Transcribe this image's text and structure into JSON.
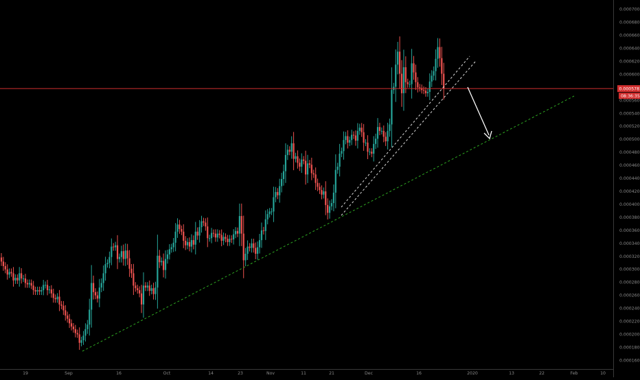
{
  "chart_data": {
    "type": "candlestick",
    "x_ticks": [
      "19",
      "Sep",
      "16",
      "Oct",
      "14",
      "23",
      "Nov",
      "11",
      "21",
      "Dec",
      "16",
      "2020",
      "13",
      "22",
      "Feb",
      "10"
    ],
    "y_ticks": [
      "0.0007000",
      "0.0006800",
      "0.0006600",
      "0.0006400",
      "0.0006200",
      "0.0006000",
      "0.0005800",
      "0.0005600",
      "0.0005400",
      "0.0005200",
      "0.0005000",
      "0.0004800",
      "0.0004600",
      "0.0004400",
      "0.0004200",
      "0.0004000",
      "0.0003800",
      "0.0003600",
      "0.0003400",
      "0.0003200",
      "0.0003000",
      "0.0002800",
      "0.0002600",
      "0.0002400",
      "0.0002200",
      "0.0002000",
      "0.0001800",
      "0.0001600"
    ],
    "ylim": [
      0.000153,
      0.0007081
    ],
    "current_price": "0.0005781",
    "countdown": "08:36:35",
    "colors": {
      "up": "#26a69a",
      "down": "#ef5350",
      "price_line": "#d32f2f",
      "support_line": "#2ea822",
      "channel_lines": "#e0e0e0",
      "arrow": "#ffffff",
      "axis_text": "#8a8a8a",
      "border": "#3a3a3a"
    },
    "ohlc_close": [
      0.000312,
      0.000305,
      0.0003,
      0.000292,
      0.000296,
      0.000294,
      0.000283,
      0.000287,
      0.000283,
      0.000294,
      0.000286,
      0.000286,
      0.000279,
      0.000277,
      0.000279,
      0.000275,
      0.000268,
      0.000266,
      0.000268,
      0.000266,
      0.000268,
      0.000276,
      0.000276,
      0.000268,
      0.000269,
      0.000263,
      0.000256,
      0.000254,
      0.000258,
      0.000246,
      0.000244,
      0.000237,
      0.000229,
      0.000224,
      0.000217,
      0.000212,
      0.000208,
      0.000202,
      0.0002,
      0.000187,
      0.000191,
      0.000198,
      0.000208,
      0.000215,
      0.000238,
      0.000279,
      0.000265,
      0.00026,
      0.000255,
      0.000272,
      0.000279,
      0.000294,
      0.000308,
      0.00031,
      0.000319,
      0.000335,
      0.000334,
      0.000337,
      0.000316,
      0.000319,
      0.000328,
      0.000316,
      0.000329,
      0.000317,
      0.000301,
      0.000294,
      0.000275,
      0.000271,
      0.000268,
      0.000263,
      0.000246,
      0.000275,
      0.000272,
      0.000275,
      0.000267,
      0.000271,
      0.000262,
      0.000272,
      0.000321,
      0.000311,
      0.000313,
      0.000299,
      0.000316,
      0.000323,
      0.000331,
      0.000334,
      0.000341,
      0.000358,
      0.000369,
      0.000362,
      0.000358,
      0.000344,
      0.000337,
      0.000342,
      0.000335,
      0.000345,
      0.000338,
      0.000358,
      0.000352,
      0.000365,
      0.000374,
      0.000372,
      0.000366,
      0.000348,
      0.000348,
      0.000356,
      0.000355,
      0.000349,
      0.000355,
      0.000353,
      0.000344,
      0.00035,
      0.000347,
      0.000342,
      0.000347,
      0.000346,
      0.000354,
      0.000359,
      0.000355,
      0.000382,
      0.000355,
      0.000314,
      0.000324,
      0.000335,
      0.000333,
      0.00034,
      0.000333,
      0.000324,
      0.000334,
      0.000345,
      0.00036,
      0.000359,
      0.000377,
      0.000385,
      0.000389,
      0.000389,
      0.000411,
      0.000419,
      0.000414,
      0.000428,
      0.000439,
      0.000451,
      0.000476,
      0.000484,
      0.000481,
      0.000494,
      0.00047,
      0.000474,
      0.000464,
      0.000458,
      0.000469,
      0.000467,
      0.000446,
      0.000463,
      0.000461,
      0.000448,
      0.000446,
      0.000433,
      0.000427,
      0.000422,
      0.000415,
      0.00042,
      0.000399,
      0.000387,
      0.000397,
      0.000402,
      0.000418,
      0.000453,
      0.000458,
      0.000478,
      0.000482,
      0.000499,
      0.000505,
      0.000495,
      0.000499,
      0.000507,
      0.000506,
      0.000498,
      0.000513,
      0.000518,
      0.000511,
      0.000495,
      0.000495,
      0.000481,
      0.000481,
      0.000478,
      0.000493,
      0.000501,
      0.000519,
      0.000513,
      0.000513,
      0.000504,
      0.000497,
      0.000513,
      0.000523,
      0.000576,
      0.000581,
      0.000615,
      0.000635,
      0.000601,
      0.000571,
      0.000611,
      0.000588,
      0.000585,
      0.000585,
      0.000617,
      0.000603,
      0.000588,
      0.00058,
      0.000579,
      0.000576,
      0.000575,
      0.000571,
      0.000573,
      0.000589,
      0.000598,
      0.000605,
      0.000624,
      0.000642,
      0.000625,
      0.000601,
      0.000578
    ]
  }
}
